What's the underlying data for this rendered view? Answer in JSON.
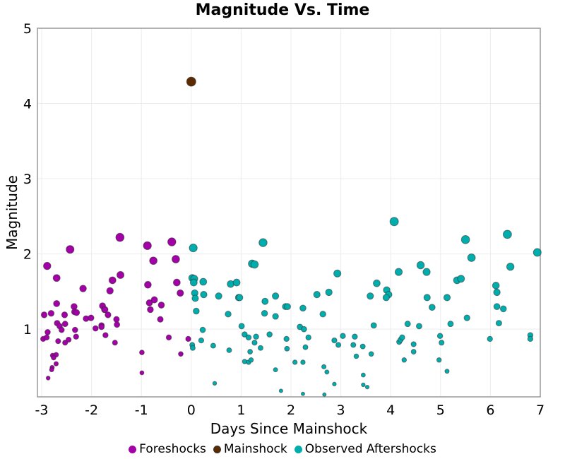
{
  "chart_data": {
    "type": "scatter",
    "title": "Magnitude Vs. Time",
    "xlabel": "Days Since Mainshock",
    "ylabel": "Magnitude",
    "xlim": [
      -3.085,
      7
    ],
    "ylim": [
      0.1,
      5
    ],
    "xticks": [
      "-3",
      "-2",
      "-1",
      "0",
      "1",
      "2",
      "3",
      "4",
      "5",
      "6",
      "7"
    ],
    "yticks": [
      "1",
      "2",
      "3",
      "4",
      "5"
    ],
    "grid": true,
    "legend": "bottom",
    "series": [
      {
        "name": "Foreshocks",
        "color": "#a300a8",
        "points": [
          [
            -1.43,
            2.22
          ],
          [
            -2.43,
            2.06
          ],
          [
            -0.88,
            2.11
          ],
          [
            -0.39,
            2.16
          ],
          [
            -2.89,
            1.84
          ],
          [
            -2.7,
            1.68
          ],
          [
            -0.76,
            1.91
          ],
          [
            -0.31,
            1.93
          ],
          [
            -1.42,
            1.72
          ],
          [
            -1.58,
            1.65
          ],
          [
            -2.17,
            1.54
          ],
          [
            -1.63,
            1.51
          ],
          [
            -0.87,
            1.59
          ],
          [
            -0.29,
            1.62
          ],
          [
            -0.22,
            1.48
          ],
          [
            -2.7,
            1.34
          ],
          [
            -2.35,
            1.3
          ],
          [
            -2.34,
            1.23
          ],
          [
            -2.3,
            1.22
          ],
          [
            -1.78,
            1.31
          ],
          [
            -1.74,
            1.26
          ],
          [
            -1.73,
            1.26
          ],
          [
            -1.67,
            1.19
          ],
          [
            -0.84,
            1.35
          ],
          [
            -0.74,
            1.39
          ],
          [
            -0.6,
            1.32
          ],
          [
            -0.82,
            1.26
          ],
          [
            -0.62,
            1.13
          ],
          [
            -2.95,
            1.19
          ],
          [
            -2.81,
            1.21
          ],
          [
            -2.54,
            1.19
          ],
          [
            -2.11,
            1.14
          ],
          [
            -2.01,
            1.15
          ],
          [
            -1.5,
            1.13
          ],
          [
            -1.49,
            1.06
          ],
          [
            -2.69,
            1.08
          ],
          [
            -2.64,
            1.04
          ],
          [
            -2.53,
            1.07
          ],
          [
            -2.6,
            0.99
          ],
          [
            -2.33,
            0.99
          ],
          [
            -1.92,
            1.01
          ],
          [
            -1.8,
            1.05
          ],
          [
            -1.8,
            1.03
          ],
          [
            -2.88,
            0.96
          ],
          [
            -2.97,
            0.87
          ],
          [
            -2.9,
            0.89
          ],
          [
            -2.67,
            0.84
          ],
          [
            -2.53,
            0.82
          ],
          [
            -2.46,
            0.86
          ],
          [
            -2.31,
            0.9
          ],
          [
            -1.72,
            0.92
          ],
          [
            -1.53,
            0.82
          ],
          [
            -0.45,
            0.89
          ],
          [
            -0.06,
            0.87
          ],
          [
            -0.99,
            0.69
          ],
          [
            -0.21,
            0.67
          ],
          [
            -2.78,
            0.65
          ],
          [
            -2.71,
            0.66
          ],
          [
            -2.76,
            0.62
          ],
          [
            -2.71,
            0.54
          ],
          [
            -2.79,
            0.49
          ],
          [
            -2.8,
            0.46
          ],
          [
            -0.99,
            0.42
          ],
          [
            -2.87,
            0.35
          ]
        ]
      },
      {
        "name": "Mainshock",
        "color": "#5c2a00",
        "points": [
          [
            0,
            4.29
          ]
        ]
      },
      {
        "name": "Observed Aftershocks",
        "color": "#00adad",
        "points": [
          [
            0.04,
            2.08
          ],
          [
            1.44,
            2.15
          ],
          [
            1.22,
            1.87
          ],
          [
            1.27,
            1.86
          ],
          [
            2.93,
            1.74
          ],
          [
            0.02,
            1.68
          ],
          [
            0.06,
            1.67
          ],
          [
            0.05,
            1.62
          ],
          [
            0.24,
            1.63
          ],
          [
            0.79,
            1.6
          ],
          [
            0.91,
            1.62
          ],
          [
            0.07,
            1.48
          ],
          [
            0.08,
            1.41
          ],
          [
            0.25,
            1.46
          ],
          [
            0.55,
            1.44
          ],
          [
            0.95,
            1.42
          ],
          [
            0.97,
            1.42
          ],
          [
            1.48,
            1.37
          ],
          [
            1.69,
            1.44
          ],
          [
            2.52,
            1.46
          ],
          [
            2.76,
            1.49
          ],
          [
            1.89,
            1.3
          ],
          [
            1.93,
            1.3
          ],
          [
            2.24,
            1.28
          ],
          [
            0.1,
            1.24
          ],
          [
            0.74,
            1.2
          ],
          [
            1.47,
            1.21
          ],
          [
            1.69,
            1.17
          ],
          [
            2.64,
            1.2
          ],
          [
            0.23,
            0.99
          ],
          [
            1.01,
            1.04
          ],
          [
            2.18,
            1.03
          ],
          [
            2.26,
            1.0
          ],
          [
            1.07,
            0.93
          ],
          [
            1.15,
            0.89
          ],
          [
            1.3,
            0.9
          ],
          [
            1.27,
            0.82
          ],
          [
            1.57,
            0.93
          ],
          [
            1.91,
            0.87
          ],
          [
            1.92,
            0.74
          ],
          [
            2.35,
            0.89
          ],
          [
            2.29,
            0.76
          ],
          [
            2.87,
            0.85
          ],
          [
            2.95,
            0.79
          ],
          [
            3.04,
            0.91
          ],
          [
            3.28,
            0.9
          ],
          [
            3.25,
            0.79
          ],
          [
            3.31,
            0.64
          ],
          [
            0.02,
            0.79
          ],
          [
            0.03,
            0.75
          ],
          [
            0.2,
            0.85
          ],
          [
            0.44,
            0.78
          ],
          [
            0.76,
            0.72
          ],
          [
            1.18,
            0.7
          ],
          [
            1.39,
            0.75
          ],
          [
            1.07,
            0.57
          ],
          [
            1.15,
            0.56
          ],
          [
            1.2,
            0.59
          ],
          [
            2.08,
            0.56
          ],
          [
            2.24,
            0.56
          ],
          [
            1.69,
            0.46
          ],
          [
            2.66,
            0.5
          ],
          [
            2.72,
            0.43
          ],
          [
            0.47,
            0.28
          ],
          [
            2.87,
            0.27
          ],
          [
            1.8,
            0.18
          ],
          [
            2.24,
            0.14
          ],
          [
            2.67,
            0.13
          ],
          [
            4.07,
            2.43
          ],
          [
            5.5,
            2.19
          ],
          [
            6.34,
            2.26
          ],
          [
            6.94,
            2.02
          ],
          [
            5.62,
            1.95
          ],
          [
            6.4,
            1.83
          ],
          [
            4.6,
            1.85
          ],
          [
            4.16,
            1.76
          ],
          [
            4.72,
            1.76
          ],
          [
            5.33,
            1.65
          ],
          [
            5.41,
            1.67
          ],
          [
            3.72,
            1.61
          ],
          [
            6.11,
            1.58
          ],
          [
            6.13,
            1.49
          ],
          [
            3.92,
            1.52
          ],
          [
            3.96,
            1.46
          ],
          [
            3.91,
            1.42
          ],
          [
            3.59,
            1.44
          ],
          [
            4.73,
            1.42
          ],
          [
            5.13,
            1.42
          ],
          [
            4.83,
            1.29
          ],
          [
            6.13,
            1.3
          ],
          [
            6.26,
            1.27
          ],
          [
            5.53,
            1.15
          ],
          [
            4.34,
            1.07
          ],
          [
            4.57,
            1.04
          ],
          [
            5.2,
            1.07
          ],
          [
            3.66,
            1.05
          ],
          [
            6.17,
            1.08
          ],
          [
            3.44,
            0.77
          ],
          [
            3.61,
            0.67
          ],
          [
            4.17,
            0.83
          ],
          [
            4.2,
            0.86
          ],
          [
            4.23,
            0.89
          ],
          [
            4.46,
            0.8
          ],
          [
            4.46,
            0.7
          ],
          [
            4.99,
            0.91
          ],
          [
            5.02,
            0.82
          ],
          [
            5.99,
            0.87
          ],
          [
            6.8,
            0.92
          ],
          [
            6.8,
            0.87
          ],
          [
            4.27,
            0.59
          ],
          [
            4.97,
            0.59
          ],
          [
            5.13,
            0.44
          ],
          [
            3.45,
            0.39
          ],
          [
            3.45,
            0.26
          ],
          [
            3.53,
            0.23
          ]
        ]
      }
    ]
  }
}
